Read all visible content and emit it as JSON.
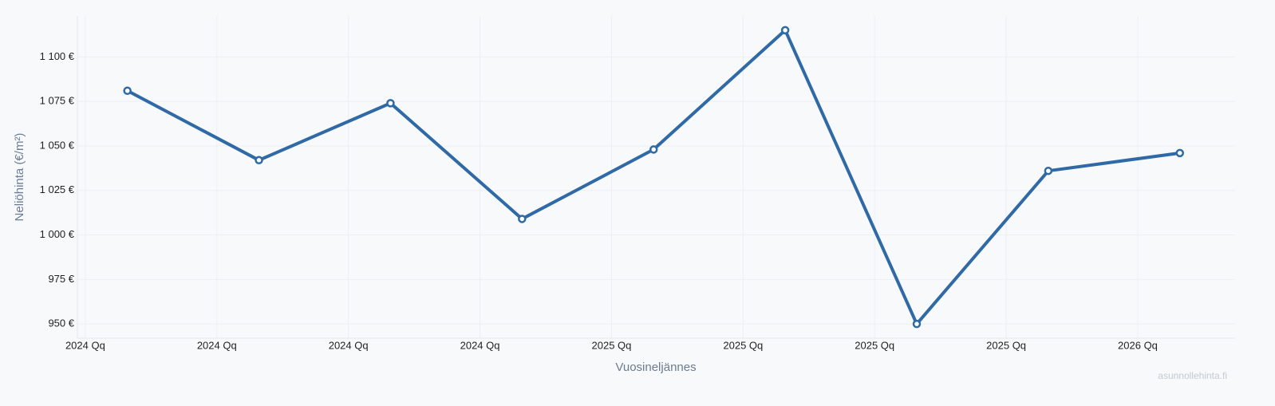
{
  "chart_data": {
    "type": "line",
    "x_label": "Vuosineljännes",
    "y_label": "Neliöhinta (€/m²)",
    "watermark": "asunnollehinta.fi",
    "x": [
      2024.08,
      2024.33,
      2024.58,
      2024.83,
      2025.08,
      2025.33,
      2025.58,
      2025.83,
      2026.08
    ],
    "series": [
      {
        "color": "#2f6aa6",
        "values": [
          1081,
          1042,
          1074,
          1009,
          1048,
          1115,
          950,
          1036,
          1046
        ]
      }
    ],
    "xlim": [
      2023.985,
      2026.185
    ],
    "xticks": [
      {
        "value": 2024,
        "label": "2024 Qq"
      },
      {
        "value": 2024.25,
        "label": "2024 Qq"
      },
      {
        "value": 2024.5,
        "label": "2024 Qq"
      },
      {
        "value": 2024.75,
        "label": "2024 Qq"
      },
      {
        "value": 2025,
        "label": "2025 Qq"
      },
      {
        "value": 2025.25,
        "label": "2025 Qq"
      },
      {
        "value": 2025.5,
        "label": "2025 Qq"
      },
      {
        "value": 2025.75,
        "label": "2025 Qq"
      },
      {
        "value": 2026,
        "label": "2026 Qq"
      }
    ],
    "ylim": [
      942,
      1123
    ],
    "yticks": [
      {
        "value": 950,
        "label": "950 €"
      },
      {
        "value": 975,
        "label": "975 €"
      },
      {
        "value": 1000,
        "label": "1 000 €"
      },
      {
        "value": 1025,
        "label": "1 025 €"
      },
      {
        "value": 1050,
        "label": "1 050 €"
      },
      {
        "value": 1075,
        "label": "1 075 €"
      },
      {
        "value": 1100,
        "label": "1 100 €"
      }
    ],
    "grid": true
  }
}
